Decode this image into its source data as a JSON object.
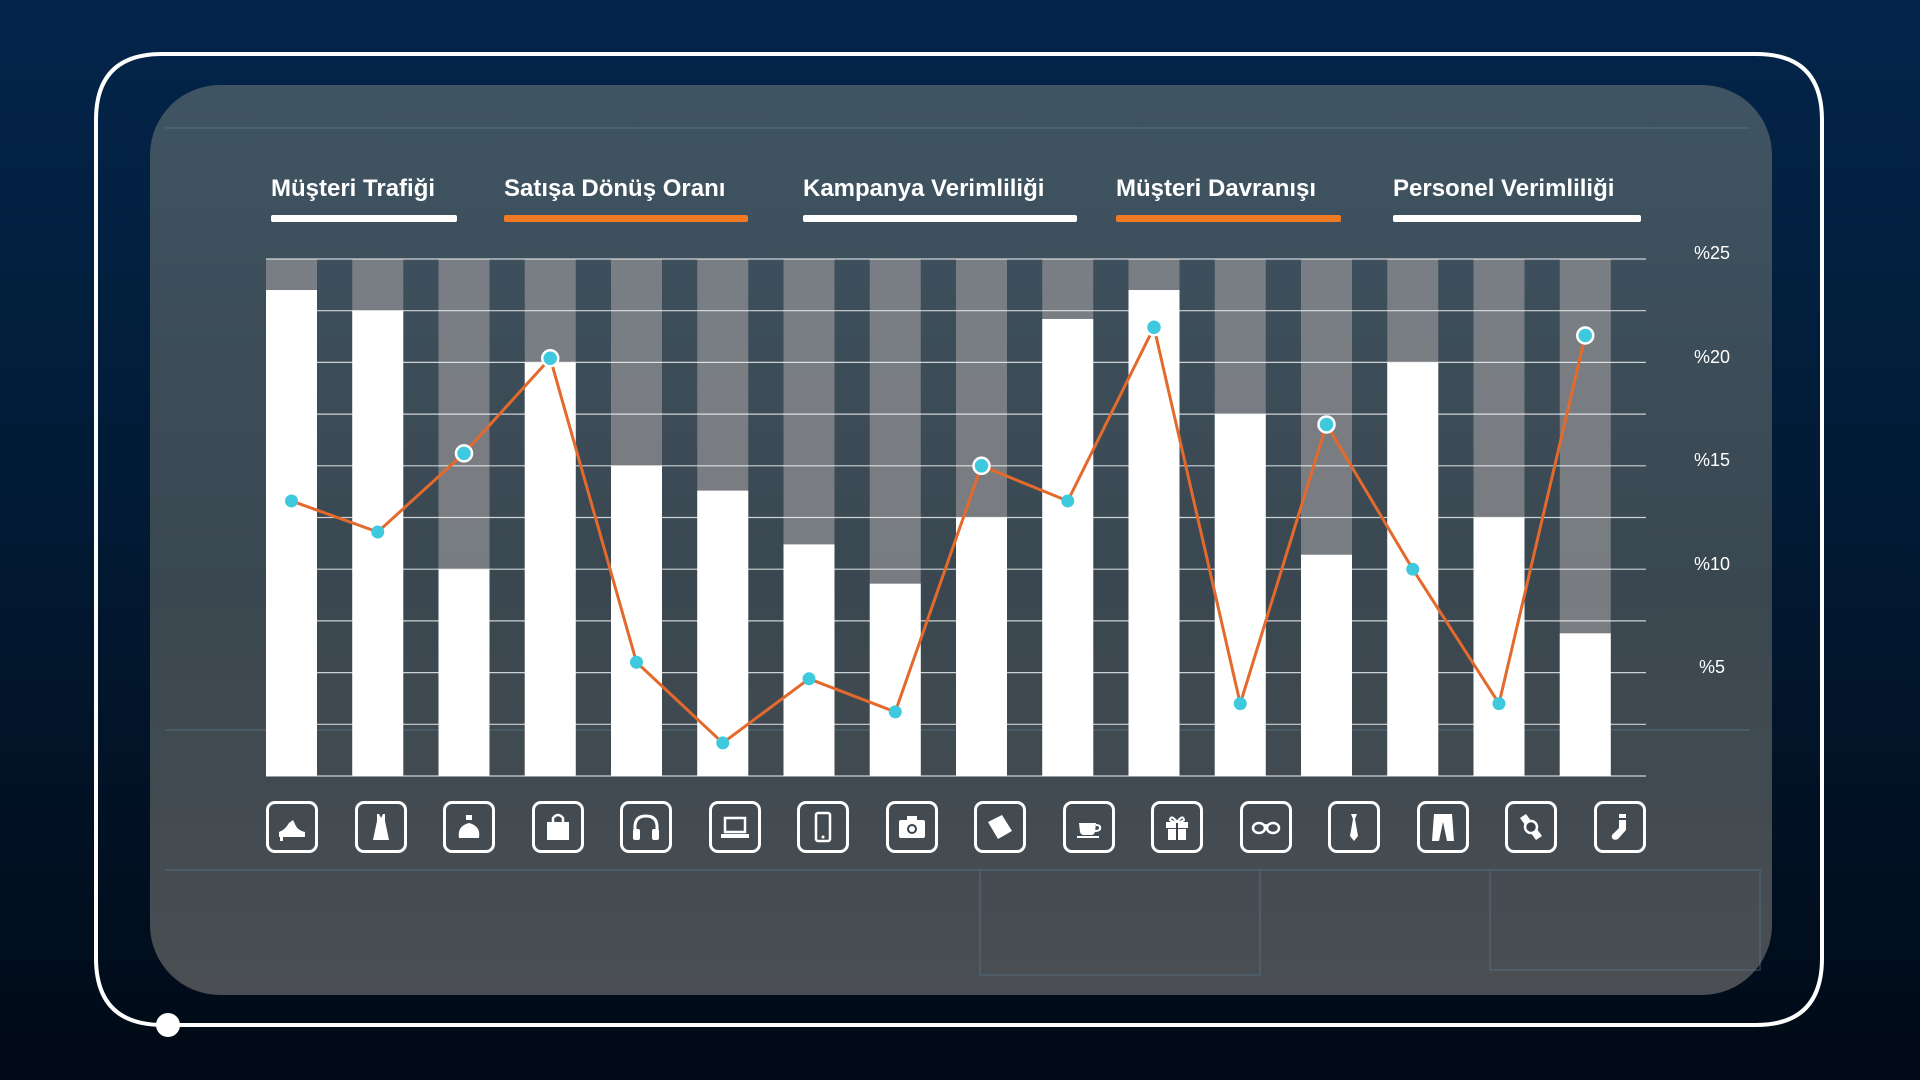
{
  "tabs": [
    {
      "label": "Müşteri Trafiği",
      "accent": "#ffffff"
    },
    {
      "label": "Satışa Dönüş Oranı",
      "accent": "#f07a24"
    },
    {
      "label": "Kampanya Verimliliği",
      "accent": "#ffffff"
    },
    {
      "label": "Müşteri Davranışı",
      "accent": "#f07a24"
    },
    {
      "label": "Personel Verimliliği",
      "accent": "#ffffff"
    }
  ],
  "categories": [
    {
      "icon": "high-heel-icon"
    },
    {
      "icon": "dress-icon"
    },
    {
      "icon": "perfume-icon"
    },
    {
      "icon": "shopping-bag-icon"
    },
    {
      "icon": "headphones-icon"
    },
    {
      "icon": "laptop-icon"
    },
    {
      "icon": "smartphone-icon"
    },
    {
      "icon": "camera-icon"
    },
    {
      "icon": "book-icon"
    },
    {
      "icon": "coffee-cup-icon"
    },
    {
      "icon": "gift-icon"
    },
    {
      "icon": "glasses-icon"
    },
    {
      "icon": "tie-icon"
    },
    {
      "icon": "trousers-icon"
    },
    {
      "icon": "watch-icon"
    },
    {
      "icon": "sock-icon"
    }
  ],
  "colors": {
    "background": "#021b36",
    "frame": "#ffffff",
    "bar": "#ffffff",
    "bar_track": "#8a8c90",
    "line": "#e36a2c",
    "marker": "#3ec9de"
  },
  "chart_data": {
    "type": "bar",
    "y_axis_side": "right",
    "ylim": [
      0,
      25
    ],
    "y_ticks": [
      "%5",
      "%10",
      "%15",
      "%20",
      "%25"
    ],
    "y_tick_values": [
      5,
      10,
      15,
      20,
      25
    ],
    "grid": true,
    "series": [
      {
        "type": "bar",
        "values": [
          23.5,
          22.5,
          10,
          20,
          15,
          13.8,
          11.2,
          9.3,
          12.5,
          22.1,
          23.5,
          17.5,
          10.7,
          20,
          12.5,
          6.9
        ]
      },
      {
        "type": "line",
        "values": [
          13.3,
          11.8,
          15.6,
          20.2,
          5.5,
          1.6,
          4.7,
          3.1,
          15,
          13.3,
          21.7,
          3.5,
          17,
          10,
          3.5,
          21.3
        ]
      }
    ]
  }
}
